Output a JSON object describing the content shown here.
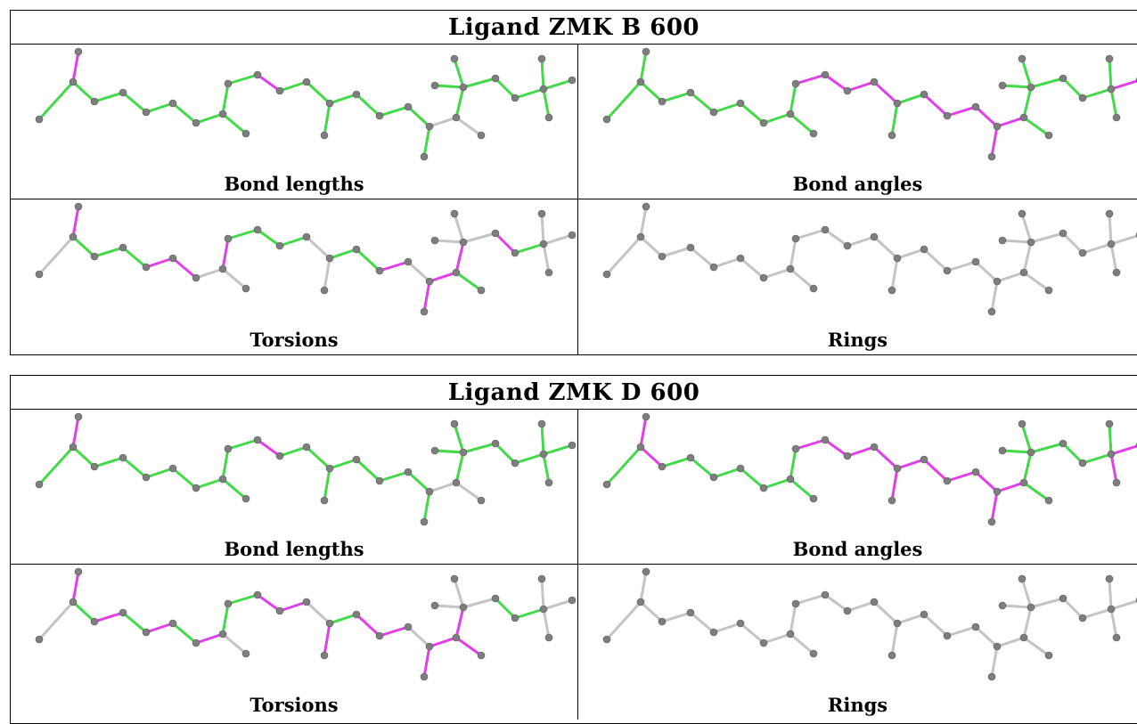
{
  "colors": {
    "satisfied": "#44d94a",
    "outlier": "#e040e8",
    "neutral": "#c4c4c4",
    "atom": "#7e7e7e"
  },
  "ligands": [
    {
      "title": "Ligand ZMK B 600",
      "panels": [
        {
          "caption": "Bond lengths",
          "mode": "lengths",
          "outliers": [
            1,
            11
          ]
        },
        {
          "caption": "Bond angles",
          "mode": "angles",
          "outliers": [
            10,
            11,
            12,
            13,
            16,
            17,
            18,
            19,
            20,
            28
          ]
        },
        {
          "caption": "Torsions",
          "mode": "torsions",
          "outliers": [
            1,
            5,
            6,
            9,
            17,
            19,
            20,
            22,
            26
          ]
        },
        {
          "caption": "Rings",
          "mode": "rings",
          "outliers": []
        }
      ]
    },
    {
      "title": "Ligand ZMK D 600",
      "panels": [
        {
          "caption": "Bond lengths",
          "mode": "lengths",
          "outliers": [
            1,
            11
          ]
        },
        {
          "caption": "Bond angles",
          "mode": "angles",
          "outliers": [
            1,
            2,
            10,
            11,
            12,
            13,
            14,
            15,
            16,
            17,
            18,
            19,
            20,
            28,
            29
          ]
        },
        {
          "caption": "Torsions",
          "mode": "torsions",
          "outliers": [
            1,
            3,
            5,
            7,
            11,
            12,
            14,
            16,
            17,
            19,
            20,
            21,
            22
          ]
        },
        {
          "caption": "Rings",
          "mode": "rings",
          "outliers": []
        }
      ]
    }
  ]
}
